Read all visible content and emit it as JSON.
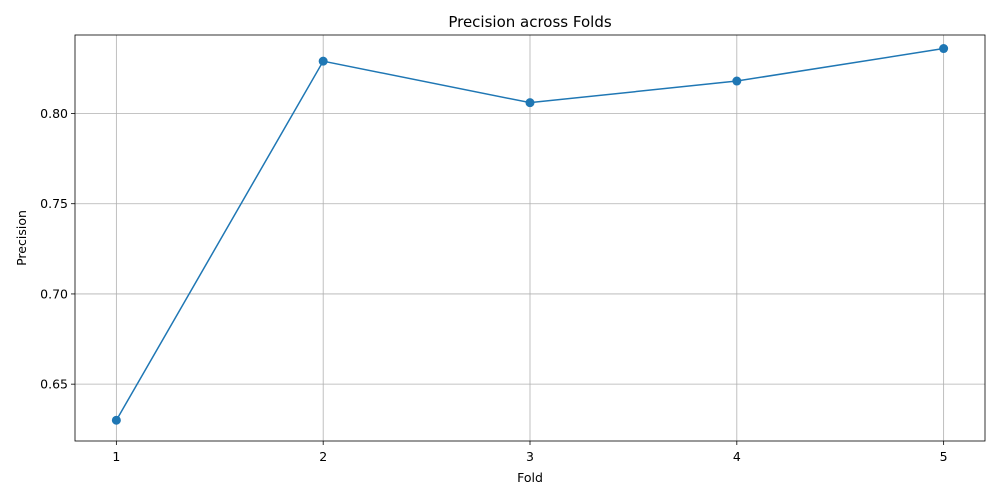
{
  "chart_data": {
    "type": "line",
    "title": "Precision across Folds",
    "xlabel": "Fold",
    "ylabel": "Precision",
    "x": [
      1,
      2,
      3,
      4,
      5
    ],
    "x_tick_labels": [
      "1",
      "2",
      "3",
      "4",
      "5"
    ],
    "y_ticks": [
      0.65,
      0.7,
      0.75,
      0.8
    ],
    "y_tick_labels": [
      "0.65",
      "0.70",
      "0.75",
      "0.80"
    ],
    "xlim": [
      0.8,
      5.2
    ],
    "ylim": [
      0.6185,
      0.8435
    ],
    "grid": true,
    "legend": false,
    "marker": "circle",
    "color": "#1f77b4",
    "series": [
      {
        "values": [
          0.63,
          0.829,
          0.806,
          0.818,
          0.836
        ]
      }
    ]
  }
}
